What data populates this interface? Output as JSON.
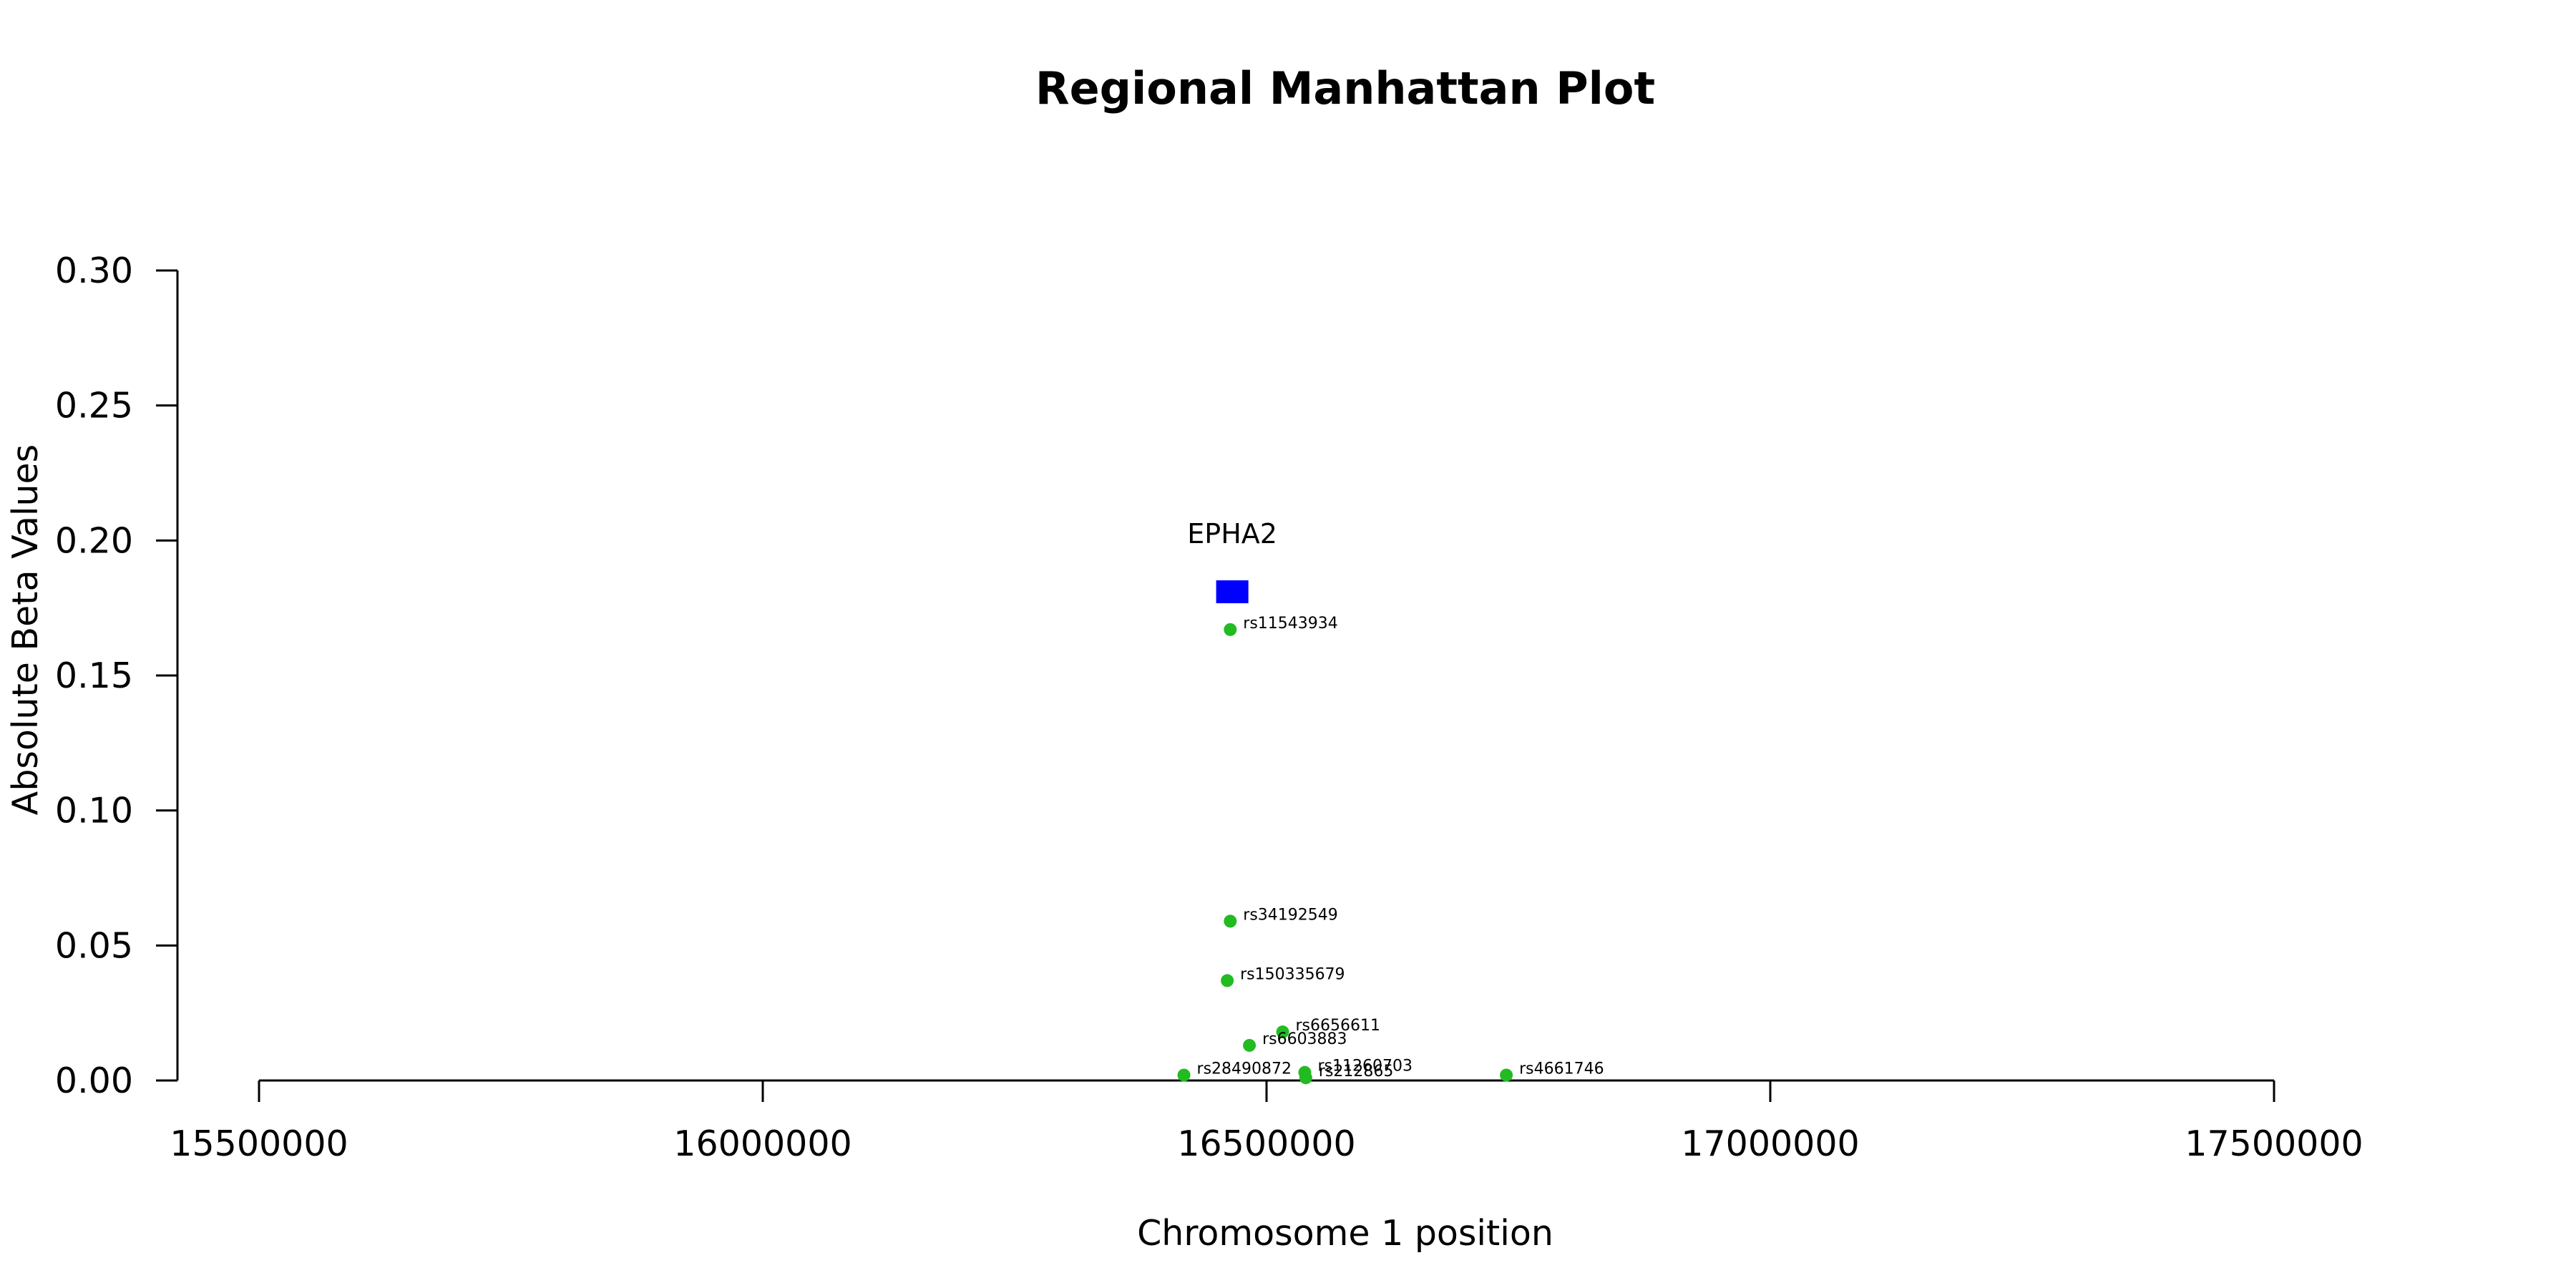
{
  "chart_data": {
    "type": "scatter",
    "title": "Regional Manhattan Plot",
    "xlabel": "Chromosome 1 position",
    "ylabel": "Absolute Beta Values",
    "xlim": [
      15420000,
      17580000
    ],
    "ylim": [
      0,
      0.3
    ],
    "x_ticks": [
      15500000,
      16000000,
      16500000,
      17000000,
      17500000
    ],
    "x_tick_labels": [
      "15500000",
      "16000000",
      "16500000",
      "17000000",
      "17500000"
    ],
    "y_ticks": [
      0.0,
      0.05,
      0.1,
      0.15,
      0.2,
      0.25,
      0.3
    ],
    "y_tick_labels": [
      "0.00",
      "0.05",
      "0.10",
      "0.15",
      "0.20",
      "0.25",
      "0.30"
    ],
    "grid": false,
    "point_color": "#22bb22",
    "gene_color": "#0000ff",
    "series": [
      {
        "points": [
          {
            "label": "rs11543934",
            "x": 16464000,
            "y": 0.167
          },
          {
            "label": "rs34192549",
            "x": 16464000,
            "y": 0.059
          },
          {
            "label": "rs150335679",
            "x": 16461000,
            "y": 0.037
          },
          {
            "label": "rs6656611",
            "x": 16516000,
            "y": 0.018
          },
          {
            "label": "rs6603883",
            "x": 16483000,
            "y": 0.013
          },
          {
            "label": "rs28490872",
            "x": 16418000,
            "y": 0.002
          },
          {
            "label": "rs11260703",
            "x": 16538000,
            "y": 0.003
          },
          {
            "label": "rs212865",
            "x": 16539000,
            "y": 0.001
          },
          {
            "label": "rs4661746",
            "x": 16738000,
            "y": 0.002
          }
        ]
      }
    ],
    "genes": [
      {
        "name": "EPHA2",
        "start": 16450000,
        "end": 16482000,
        "y": 0.181
      }
    ]
  }
}
